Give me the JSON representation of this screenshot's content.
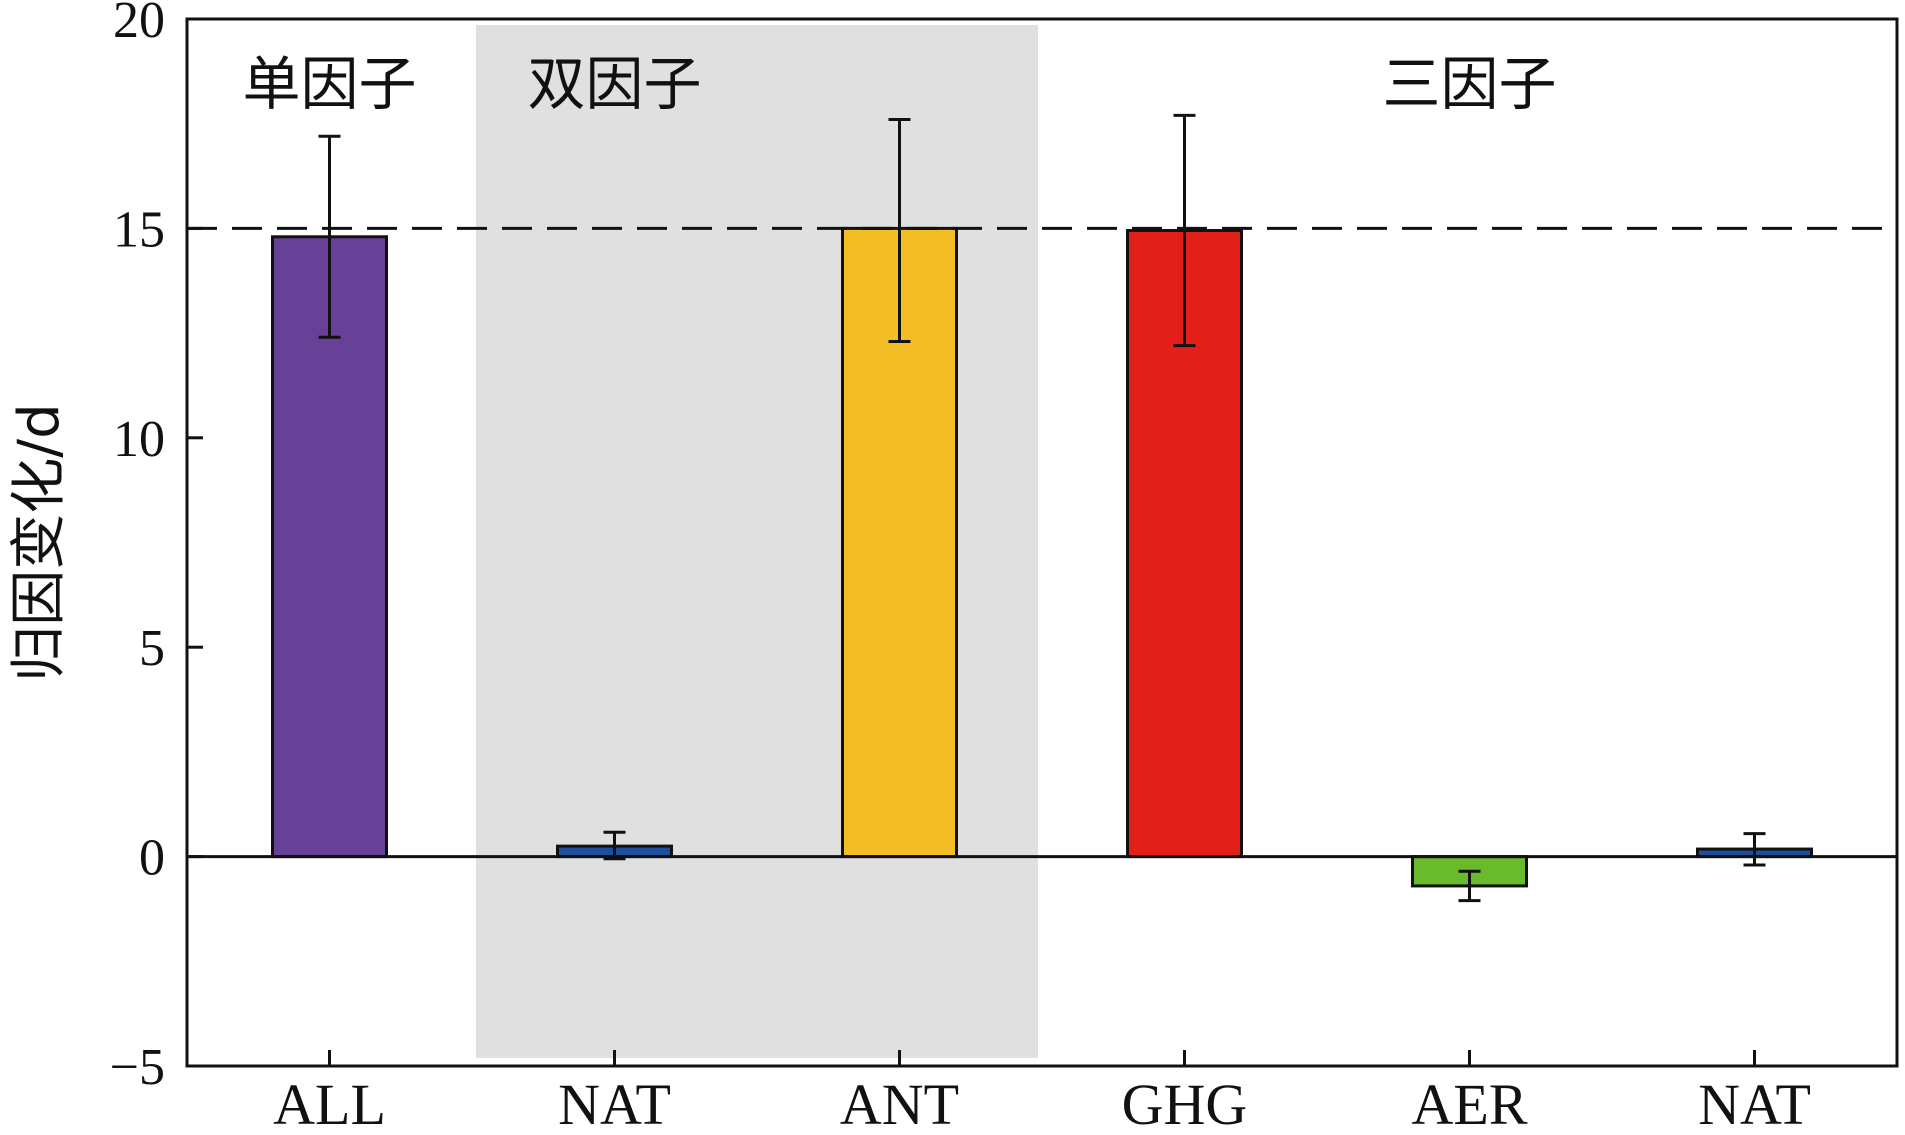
{
  "chart_data": {
    "type": "bar",
    "categories": [
      "ALL",
      "NAT",
      "ANT",
      "GHG",
      "AER",
      "NAT"
    ],
    "values": [
      14.8,
      0.25,
      15.0,
      14.95,
      -0.7,
      0.18
    ],
    "errors": [
      [
        12.4,
        17.2
      ],
      [
        -0.05,
        0.58
      ],
      [
        12.3,
        17.6
      ],
      [
        12.2,
        17.7
      ],
      [
        -1.05,
        -0.35
      ],
      [
        -0.2,
        0.55
      ]
    ],
    "colors": [
      "#674097",
      "#1f4e9e",
      "#f3bd25",
      "#e31f1a",
      "#6aba2e",
      "#1f4e9e"
    ],
    "groups": [
      {
        "label": "单因子",
        "shaded": false
      },
      {
        "label": "双因子",
        "shaded": true
      },
      {
        "label": "三因子",
        "shaded": false
      }
    ],
    "shade_color": "#e0e0e1",
    "ylabel": "归因变化/d",
    "xlabel": "",
    "ylim": [
      -5,
      20
    ],
    "yticks": [
      -5,
      0,
      5,
      10,
      15,
      20
    ],
    "ytick_labels": [
      "−5",
      "0",
      "5",
      "10",
      "15",
      "20"
    ],
    "reference_line": 15,
    "grid": false
  }
}
